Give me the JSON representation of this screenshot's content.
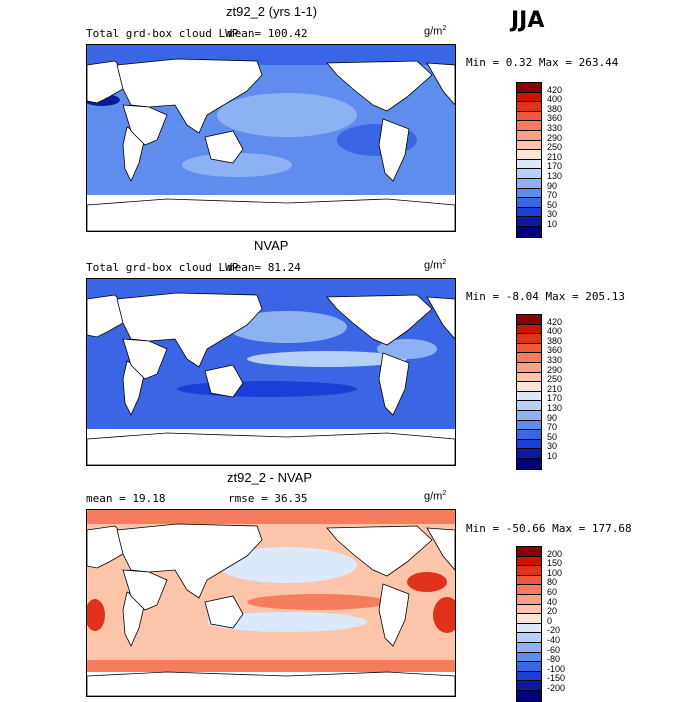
{
  "season": "JJA",
  "panels": [
    {
      "title": "zt92_2 (yrs 1-1)",
      "field": "Total grd-box cloud LWP",
      "mean": "mean= 100.42",
      "units": "g/m",
      "units_exp": "2",
      "minmax": "Min =   0.32 Max = 263.44",
      "colorbar": [
        "420",
        "400",
        "380",
        "360",
        "330",
        "290",
        "250",
        "210",
        "170",
        "130",
        "90",
        "70",
        "50",
        "30",
        "10"
      ],
      "colors": [
        "#8b0000",
        "#c81400",
        "#e0321a",
        "#ef5a3a",
        "#f57c5c",
        "#f9a183",
        "#fcc5aa",
        "#fde5d4",
        "#dce9fb",
        "#b7d0f8",
        "#8cb2f3",
        "#5f8ded",
        "#3a66e6",
        "#1a3fd6",
        "#0a1a9a",
        "#00007a"
      ]
    },
    {
      "title": "NVAP",
      "field": "Total grd-box cloud LWP",
      "mean": "mean=  81.24",
      "units": "g/m",
      "units_exp": "2",
      "minmax": "Min =  -8.04 Max = 205.13",
      "colorbar": [
        "420",
        "400",
        "380",
        "360",
        "330",
        "290",
        "250",
        "210",
        "170",
        "130",
        "90",
        "70",
        "50",
        "30",
        "10"
      ],
      "colors": [
        "#8b0000",
        "#c81400",
        "#e0321a",
        "#ef5a3a",
        "#f57c5c",
        "#f9a183",
        "#fcc5aa",
        "#fde5d4",
        "#dce9fb",
        "#b7d0f8",
        "#8cb2f3",
        "#5f8ded",
        "#3a66e6",
        "#1a3fd6",
        "#0a1a9a",
        "#00007a"
      ]
    },
    {
      "title": "zt92_2 - NVAP",
      "mean": "mean =  19.18",
      "rmse": "rmse =  36.35",
      "units": "g/m",
      "units_exp": "2",
      "minmax": "Min = -50.66 Max = 177.68",
      "colorbar": [
        "200",
        "150",
        "100",
        "80",
        "60",
        "40",
        "20",
        "0",
        "-20",
        "-40",
        "-60",
        "-80",
        "-100",
        "-150",
        "-200"
      ],
      "colors": [
        "#8b0000",
        "#c81400",
        "#e0321a",
        "#ef5a3a",
        "#f57c5c",
        "#f9a183",
        "#fcc5aa",
        "#fde5d4",
        "#dce9fb",
        "#b7d0f8",
        "#8cb2f3",
        "#5f8ded",
        "#3a66e6",
        "#1a3fd6",
        "#0a1a9a",
        "#00007a"
      ]
    }
  ]
}
